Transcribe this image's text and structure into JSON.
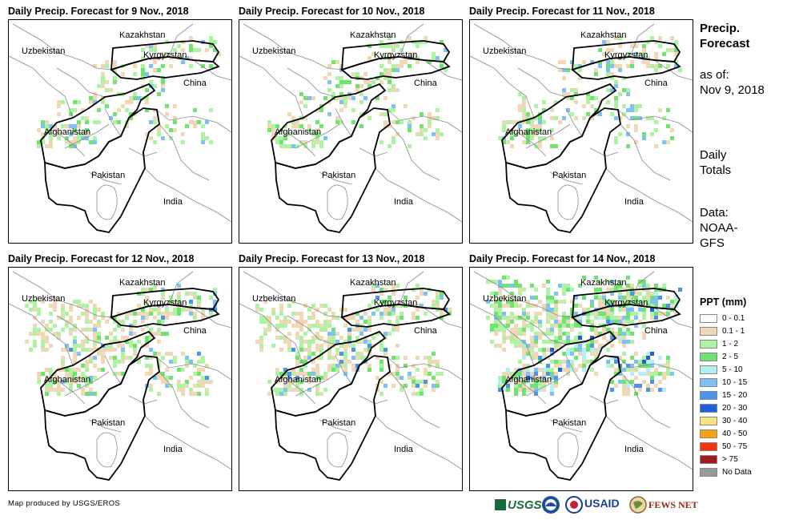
{
  "panels": [
    {
      "title": "Daily Precip. Forecast for 9 Nov., 2018",
      "level": 1
    },
    {
      "title": "Daily Precip. Forecast for 10 Nov., 2018",
      "level": 1
    },
    {
      "title": "Daily Precip. Forecast for 11 Nov., 2018",
      "level": 1
    },
    {
      "title": "Daily Precip. Forecast for 12 Nov., 2018",
      "level": 2
    },
    {
      "title": "Daily Precip. Forecast for 13 Nov., 2018",
      "level": 2
    },
    {
      "title": "Daily Precip. Forecast for 14 Nov., 2018",
      "level": 3
    }
  ],
  "map_labels": {
    "kazakhstan": "Kazakhstan",
    "uzbekistan": "Uzbekistan",
    "kyrgyzstan": "Kyrgyzstan",
    "china": "China",
    "afghanistan": "Afghanistan",
    "pakistan": "Pakistan",
    "india": "India"
  },
  "side": {
    "title_line1": "Precip.",
    "title_line2": "Forecast",
    "asof_label": "as of:",
    "asof_date": "Nov 9, 2018",
    "totals_line1": "Daily",
    "totals_line2": "Totals",
    "data_line1": "Data:",
    "data_line2": "NOAA-",
    "data_line3": "GFS"
  },
  "legend": {
    "title": "PPT (mm)",
    "items": [
      {
        "label": "0 - 0.1",
        "color": "#ffffff"
      },
      {
        "label": "0.1 - 1",
        "color": "#eed8b5"
      },
      {
        "label": "1 - 2",
        "color": "#aef3a2"
      },
      {
        "label": "2 - 5",
        "color": "#6fe36f"
      },
      {
        "label": "5 - 10",
        "color": "#b3f0f5"
      },
      {
        "label": "10 - 15",
        "color": "#7fc0f5"
      },
      {
        "label": "15 - 20",
        "color": "#4a95eb"
      },
      {
        "label": "20 - 30",
        "color": "#1f5fd8"
      },
      {
        "label": "30 - 40",
        "color": "#f9e27d"
      },
      {
        "label": "40 - 50",
        "color": "#f5a30f"
      },
      {
        "label": "50 - 75",
        "color": "#f2350f"
      },
      {
        "label": "> 75",
        "color": "#a01c1c"
      },
      {
        "label": "No Data",
        "color": "#999999"
      }
    ]
  },
  "credit": "Map produced by USGS/EROS",
  "logos": {
    "usgs": "USGS",
    "usaid": "USAID",
    "fewsnet": "FEWS NET"
  }
}
